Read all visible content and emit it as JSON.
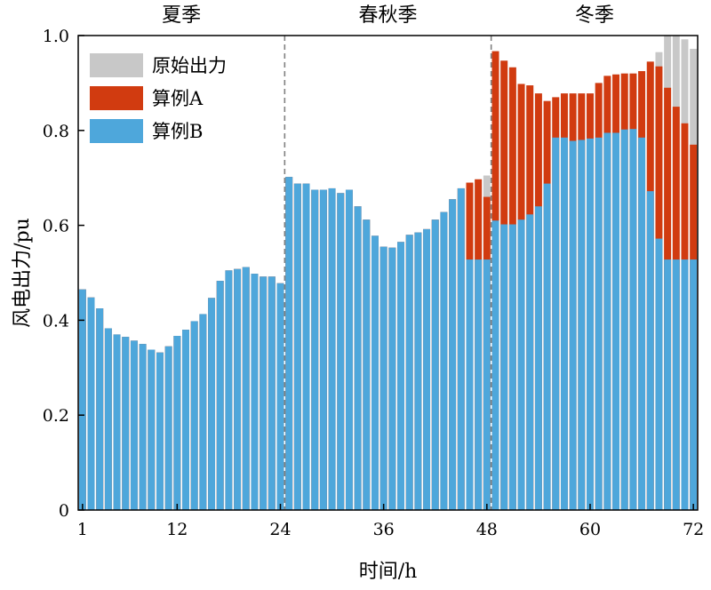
{
  "chart_data": {
    "type": "bar",
    "title": "",
    "xlabel": "时间/h",
    "ylabel": "风电出力/pu",
    "xlim": [
      1,
      72
    ],
    "ylim": [
      0,
      1.0
    ],
    "x_ticks": [
      1,
      12,
      24,
      36,
      48,
      60,
      72
    ],
    "y_ticks": [
      0,
      0.2,
      0.4,
      0.6,
      0.8,
      1.0
    ],
    "y_tick_labels": [
      "0",
      "0.2",
      "0.4",
      "0.6",
      "0.8",
      "1.0"
    ],
    "legend_position": "top-left",
    "seasons": [
      {
        "label": "夏季",
        "x_center": 12.5
      },
      {
        "label": "春秋季",
        "x_center": 36.5
      },
      {
        "label": "冬季",
        "x_center": 60.5
      }
    ],
    "dividers": [
      24.5,
      48.5
    ],
    "x": [
      1,
      2,
      3,
      4,
      5,
      6,
      7,
      8,
      9,
      10,
      11,
      12,
      13,
      14,
      15,
      16,
      17,
      18,
      19,
      20,
      21,
      22,
      23,
      24,
      25,
      26,
      27,
      28,
      29,
      30,
      31,
      32,
      33,
      34,
      35,
      36,
      37,
      38,
      39,
      40,
      41,
      42,
      43,
      44,
      45,
      46,
      47,
      48,
      49,
      50,
      51,
      52,
      53,
      54,
      55,
      56,
      57,
      58,
      59,
      60,
      61,
      62,
      63,
      64,
      65,
      66,
      67,
      68,
      69,
      70,
      71,
      72
    ],
    "series": [
      {
        "name": "原始出力",
        "color": "#c8c8c8",
        "values": [
          0.465,
          0.448,
          0.425,
          0.383,
          0.37,
          0.365,
          0.357,
          0.35,
          0.338,
          0.332,
          0.345,
          0.367,
          0.38,
          0.398,
          0.413,
          0.447,
          0.483,
          0.505,
          0.508,
          0.512,
          0.498,
          0.492,
          0.492,
          0.478,
          0.702,
          0.688,
          0.688,
          0.675,
          0.675,
          0.678,
          0.668,
          0.675,
          0.64,
          0.612,
          0.578,
          0.555,
          0.553,
          0.565,
          0.58,
          0.585,
          0.592,
          0.612,
          0.628,
          0.655,
          0.678,
          0.69,
          0.697,
          0.705,
          0.967,
          0.947,
          0.933,
          0.898,
          0.895,
          0.878,
          0.862,
          0.87,
          0.878,
          0.878,
          0.878,
          0.878,
          0.9,
          0.915,
          0.918,
          0.92,
          0.92,
          0.925,
          0.945,
          0.965,
          1.0,
          1.0,
          0.992,
          0.972
        ]
      },
      {
        "name": "算例A",
        "color": "#d13b10",
        "values": [
          0.465,
          0.448,
          0.425,
          0.383,
          0.37,
          0.365,
          0.357,
          0.35,
          0.338,
          0.332,
          0.345,
          0.367,
          0.38,
          0.398,
          0.413,
          0.447,
          0.483,
          0.505,
          0.508,
          0.512,
          0.498,
          0.492,
          0.492,
          0.478,
          0.702,
          0.688,
          0.688,
          0.675,
          0.675,
          0.678,
          0.668,
          0.675,
          0.64,
          0.612,
          0.578,
          0.555,
          0.553,
          0.565,
          0.58,
          0.585,
          0.592,
          0.612,
          0.628,
          0.655,
          0.678,
          0.69,
          0.697,
          0.66,
          0.967,
          0.947,
          0.933,
          0.898,
          0.895,
          0.878,
          0.862,
          0.87,
          0.878,
          0.878,
          0.878,
          0.878,
          0.9,
          0.915,
          0.918,
          0.92,
          0.92,
          0.925,
          0.945,
          0.935,
          0.89,
          0.85,
          0.815,
          0.77
        ]
      },
      {
        "name": "算例B",
        "color": "#4ea7db",
        "values": [
          0.465,
          0.448,
          0.425,
          0.383,
          0.37,
          0.365,
          0.357,
          0.35,
          0.338,
          0.332,
          0.345,
          0.367,
          0.38,
          0.398,
          0.413,
          0.447,
          0.483,
          0.505,
          0.508,
          0.512,
          0.498,
          0.492,
          0.492,
          0.478,
          0.702,
          0.688,
          0.688,
          0.675,
          0.675,
          0.678,
          0.668,
          0.675,
          0.64,
          0.612,
          0.578,
          0.555,
          0.553,
          0.565,
          0.58,
          0.585,
          0.592,
          0.612,
          0.628,
          0.655,
          0.678,
          0.528,
          0.528,
          0.528,
          0.61,
          0.602,
          0.602,
          0.612,
          0.623,
          0.64,
          0.688,
          0.785,
          0.785,
          0.778,
          0.78,
          0.783,
          0.785,
          0.795,
          0.795,
          0.802,
          0.803,
          0.785,
          0.672,
          0.572,
          0.528,
          0.528,
          0.528,
          0.528
        ]
      }
    ]
  }
}
